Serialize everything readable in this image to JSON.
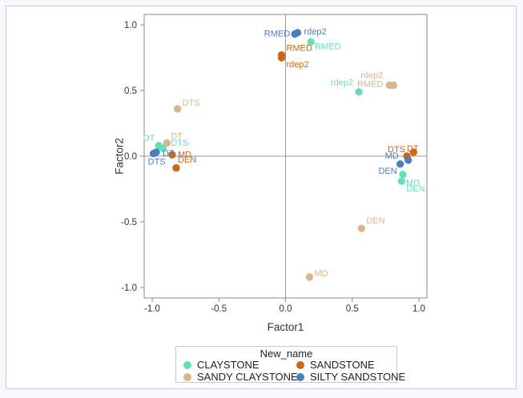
{
  "window": {
    "background": "#F6F8FC",
    "card_background": "#FFFFFF",
    "card_border": "#CBCBCB"
  },
  "chart_data": {
    "type": "scatter",
    "title": "",
    "xlabel": "Factor1",
    "ylabel": "Factor2",
    "xlim": [
      -1.06,
      1.06
    ],
    "ylim": [
      -1.08,
      1.08
    ],
    "x_tick_values": [
      -1.0,
      -0.5,
      0.0,
      0.5,
      1.0
    ],
    "x_tick_labels": [
      "-1.0",
      "-0.5",
      "0.0",
      "0.5",
      "1.0"
    ],
    "y_tick_values": [
      1.0,
      0.5,
      0.0,
      -0.5,
      -1.0
    ],
    "y_tick_labels": [
      "1.0",
      "0.5",
      "0.0",
      "-0.5",
      "-1.0"
    ],
    "grid": false,
    "reference_line_x": 0,
    "reference_line_y": 0,
    "axis_color": "#898989",
    "reference_line_color": "#9B9B9B",
    "legend": {
      "title": "New_name",
      "position": "bottom",
      "entries": [
        {
          "label": "CLAYSTONE",
          "color": "#64E0B6"
        },
        {
          "label": "SANDSTONE",
          "color": "#CE6716"
        },
        {
          "label": "SANDY CLAYSTONE",
          "color": "#D9B48C"
        },
        {
          "label": "SILTY SANDSTONE",
          "color": "#4A7EBD"
        }
      ]
    },
    "series": [
      {
        "name": "CLAYSTONE",
        "color": "#64E0B6",
        "points": [
          {
            "label": "RMED",
            "x": 0.19,
            "y": 0.87,
            "anchor": "start",
            "dx": 5,
            "dy": 5
          },
          {
            "label": "rdep2",
            "x": 0.55,
            "y": 0.49,
            "anchor": "end",
            "dx": -7,
            "dy": -12
          },
          {
            "label": "DT",
            "x": -0.95,
            "y": 0.08,
            "anchor": "end",
            "dx": -5,
            "dy": -10
          },
          {
            "label": "DTS",
            "x": -0.92,
            "y": 0.06,
            "anchor": "start",
            "dx": 10,
            "dy": -7
          },
          {
            "label": "MD",
            "x": 0.88,
            "y": -0.14,
            "anchor": "start",
            "dx": 4,
            "dy": 10
          },
          {
            "label": "DEN",
            "x": 0.87,
            "y": -0.19,
            "anchor": "start",
            "dx": 6,
            "dy": 9
          }
        ]
      },
      {
        "name": "SANDY CLAYSTONE",
        "color": "#D9B48C",
        "points": [
          {
            "label": "DTS",
            "x": -0.81,
            "y": 0.36,
            "anchor": "start",
            "dx": 6,
            "dy": -8
          },
          {
            "label": "DT",
            "x": -0.89,
            "y": 0.1,
            "anchor": "start",
            "dx": 5,
            "dy": -9
          },
          {
            "label": "rdep2",
            "x": 0.78,
            "y": 0.54,
            "anchor": "end",
            "dx": -8,
            "dy": -13
          },
          {
            "label": "RMED",
            "x": 0.81,
            "y": 0.54,
            "anchor": "end",
            "dx": -13,
            "dy": -2
          },
          {
            "label": "DEN",
            "x": 0.57,
            "y": -0.55,
            "anchor": "start",
            "dx": 6,
            "dy": -10
          },
          {
            "label": "MD",
            "x": 0.18,
            "y": -0.92,
            "anchor": "start",
            "dx": 6,
            "dy": -5
          }
        ]
      },
      {
        "name": "SANDSTONE",
        "color": "#CE6716",
        "points": [
          {
            "label": "RMED",
            "x": -0.03,
            "y": 0.77,
            "anchor": "start",
            "dx": 6,
            "dy": -9
          },
          {
            "label": "rdep2",
            "x": -0.03,
            "y": 0.75,
            "anchor": "start",
            "dx": 6,
            "dy": 8
          },
          {
            "label": "MD",
            "x": -0.85,
            "y": 0.01,
            "anchor": "start",
            "dx": 7,
            "dy": -1
          },
          {
            "label": "DEN",
            "x": -0.82,
            "y": -0.09,
            "anchor": "start",
            "dx": 2,
            "dy": -11
          },
          {
            "label": "DTS",
            "x": 0.91,
            "y": 0.0,
            "anchor": "end",
            "dx": -2,
            "dy": -9
          },
          {
            "label": "DT",
            "x": 0.96,
            "y": 0.03,
            "anchor": "middle",
            "dx": -1,
            "dy": -5
          }
        ]
      },
      {
        "name": "SILTY SANDSTONE",
        "color": "#4A7EBD",
        "points": [
          {
            "label": "rdep2",
            "x": 0.09,
            "y": 0.94,
            "anchor": "start",
            "dx": 8,
            "dy": -2
          },
          {
            "label": "RMED",
            "x": 0.07,
            "y": 0.93,
            "anchor": "end",
            "dx": -6,
            "dy": -1
          },
          {
            "label": "DT",
            "x": -0.97,
            "y": 0.03,
            "anchor": "start",
            "dx": 8,
            "dy": 1
          },
          {
            "label": "DTS",
            "x": -0.99,
            "y": 0.02,
            "anchor": "start",
            "dx": -7,
            "dy": 10
          },
          {
            "label": "MD",
            "x": 0.92,
            "y": -0.03,
            "anchor": "end",
            "dx": -12,
            "dy": -6
          },
          {
            "label": "DEN",
            "x": 0.86,
            "y": -0.06,
            "anchor": "end",
            "dx": -4,
            "dy": 8
          }
        ]
      }
    ]
  }
}
